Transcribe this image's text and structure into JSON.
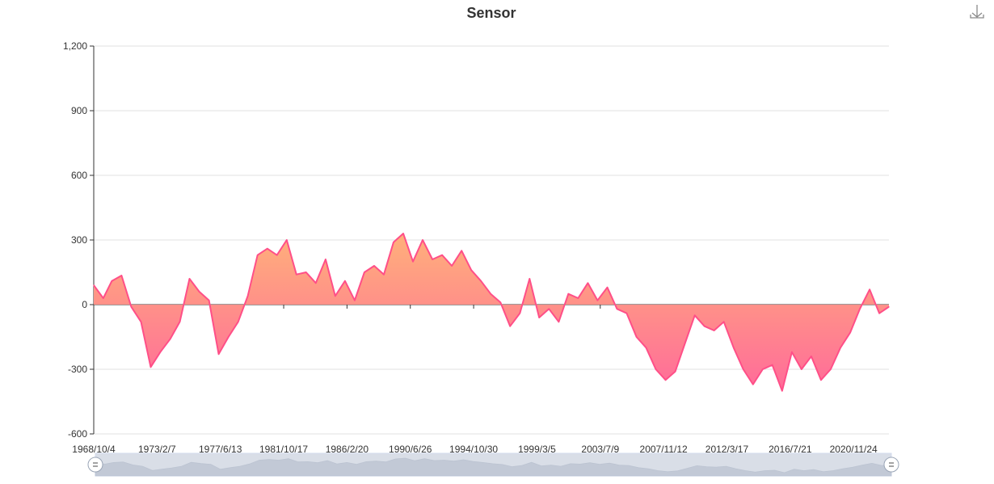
{
  "chart_data": {
    "type": "area",
    "title": "Sensor",
    "xlabel": "",
    "ylabel": "",
    "ylim": [
      -600,
      1200
    ],
    "yticks": [
      -600,
      -300,
      0,
      300,
      600,
      900,
      1200
    ],
    "ytick_labels": [
      "-600",
      "-300",
      "0",
      "300",
      "600",
      "900",
      "1,200"
    ],
    "xtick_labels": [
      "1968/10/4",
      "1973/2/7",
      "1977/6/13",
      "1981/10/17",
      "1986/2/20",
      "1990/6/26",
      "1994/10/30",
      "1999/3/5",
      "2003/7/9",
      "2007/11/12",
      "2012/3/17",
      "2016/7/21",
      "2020/11/24"
    ],
    "x_range": [
      "1968/10/4",
      "2023/5/1"
    ],
    "grid": true,
    "legend": "none",
    "colors": {
      "line": "#ff4f88",
      "fill_top": "#ffb07a",
      "fill_bottom": "#ff6b9a",
      "slider_bg": "#d9dee7",
      "slider_shadow": "#b4bccb"
    },
    "series": [
      {
        "x": [
          "1968/10/4",
          "1969/6/1",
          "1970/1/1",
          "1970/9/1",
          "1971/5/1",
          "1972/1/1",
          "1972/9/1",
          "1973/5/1",
          "1974/1/1",
          "1974/9/1",
          "1975/5/1",
          "1976/1/1",
          "1976/9/1",
          "1977/5/1",
          "1978/1/1",
          "1978/9/1",
          "1979/5/1",
          "1980/1/1",
          "1980/9/1",
          "1981/5/1",
          "1982/1/1",
          "1982/9/1",
          "1983/5/1",
          "1984/1/1",
          "1984/9/1",
          "1985/5/1",
          "1986/1/1",
          "1986/9/1",
          "1987/5/1",
          "1988/1/1",
          "1988/9/1",
          "1989/5/1",
          "1990/1/1",
          "1990/9/1",
          "1991/5/1",
          "1992/1/1",
          "1992/9/1",
          "1993/5/1",
          "1994/1/1",
          "1994/9/1",
          "1995/5/1",
          "1996/1/1",
          "1996/9/1",
          "1997/5/1",
          "1998/1/1",
          "1998/9/1",
          "1999/5/1",
          "2000/1/1",
          "2000/9/1",
          "2001/5/1",
          "2002/1/1",
          "2002/9/1",
          "2003/5/1",
          "2004/1/1",
          "2004/9/1",
          "2005/5/1",
          "2006/1/1",
          "2006/9/1",
          "2007/5/1",
          "2008/1/1",
          "2008/9/1",
          "2009/5/1",
          "2010/1/1",
          "2010/9/1",
          "2011/5/1",
          "2012/1/1",
          "2012/9/1",
          "2013/5/1",
          "2014/1/1",
          "2014/9/1",
          "2015/5/1",
          "2016/1/1",
          "2016/9/1",
          "2017/5/1",
          "2018/1/1",
          "2018/9/1",
          "2019/5/1",
          "2020/1/1",
          "2020/9/1",
          "2021/5/1",
          "2022/1/1",
          "2022/9/1",
          "2023/5/1"
        ],
        "values": [
          90,
          30,
          110,
          135,
          -10,
          -80,
          -290,
          -220,
          -160,
          -80,
          120,
          60,
          20,
          -230,
          -150,
          -80,
          40,
          230,
          260,
          230,
          300,
          140,
          150,
          100,
          210,
          40,
          110,
          20,
          150,
          180,
          140,
          290,
          330,
          200,
          300,
          210,
          230,
          180,
          250,
          160,
          110,
          50,
          10,
          -100,
          -40,
          120,
          -60,
          -20,
          -80,
          50,
          30,
          100,
          20,
          80,
          -20,
          -40,
          -150,
          -200,
          -300,
          -350,
          -310,
          -180,
          -50,
          -100,
          -120,
          -80,
          -200,
          -300,
          -370,
          -300,
          -280,
          -400,
          -220,
          -300,
          -240,
          -350,
          -300,
          -200,
          -130,
          -20,
          70,
          -40,
          -10
        ]
      }
    ]
  },
  "toolbox": {
    "download_icon": "download-icon"
  },
  "datazoom": {
    "start_handle_icon": "drag-handle-icon",
    "end_handle_icon": "drag-handle-icon",
    "start": 0,
    "end": 100
  }
}
